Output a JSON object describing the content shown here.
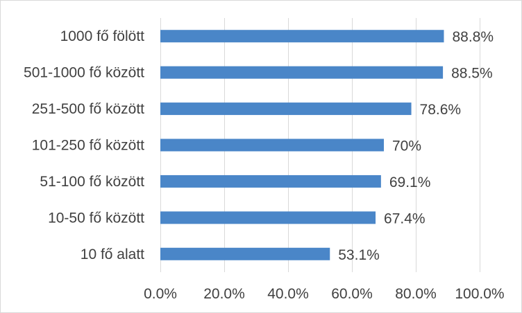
{
  "chart_data": {
    "type": "bar",
    "orientation": "horizontal",
    "categories": [
      "1000 fő fölött",
      "501-1000 fő között",
      "251-500 fő között",
      "101-250 fő között",
      "51-100 fő között",
      "10-50 fő között",
      "10 fő alatt"
    ],
    "values": [
      88.8,
      88.5,
      78.6,
      70,
      69.1,
      67.4,
      53.1
    ],
    "data_labels": [
      "88.8%",
      "88.5%",
      "78.6%",
      "70%",
      "69.1%",
      "67.4%",
      "53.1%"
    ],
    "xlim": [
      0,
      100
    ],
    "x_ticks": [
      0,
      20,
      40,
      60,
      80,
      100
    ],
    "x_tick_labels": [
      "0.0%",
      "20.0%",
      "40.0%",
      "60.0%",
      "80.0%",
      "100.0%"
    ],
    "grid": true,
    "bar_color": "#4a86c8",
    "grid_color": "#d9d9d9"
  }
}
